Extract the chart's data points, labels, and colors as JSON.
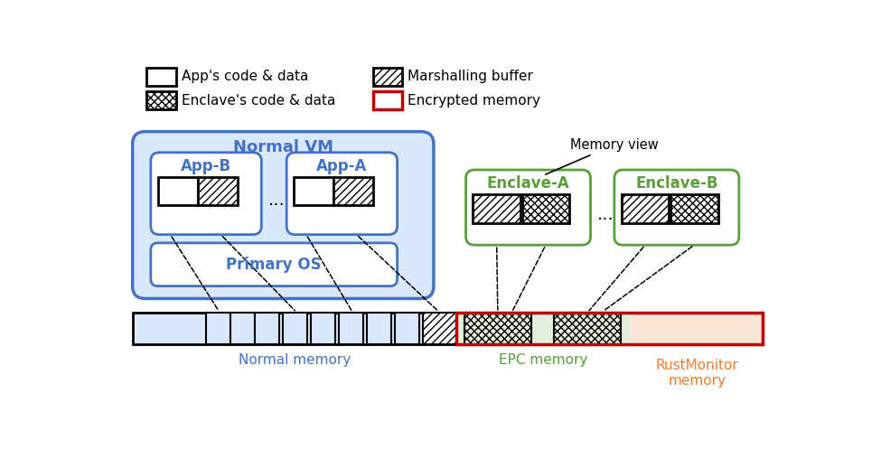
{
  "fig_width": 9.75,
  "fig_height": 5.08,
  "dpi": 100,
  "bg_color": "#ffffff",
  "blue_color": "#4472C4",
  "green_color": "#5A9E3A",
  "orange_color": "#ED7D31",
  "red_color": "#C00000",
  "light_blue": "#D9E8FB",
  "light_green": "#E2EFDA",
  "light_orange": "#FCE4D6",
  "normal_vm_label": "Normal VM",
  "app_b_label": "App-B",
  "app_a_label": "App-A",
  "primary_os_label": "Primary OS",
  "enclave_a_label": "Enclave-A",
  "enclave_b_label": "Enclave-B",
  "memory_view_label": "Memory view",
  "normal_memory_label": "Normal memory",
  "epc_memory_label": "EPC memory",
  "rust_monitor_label": "RustMonitor\nmemory",
  "legend": [
    {
      "label": "App's code & data",
      "fc": "white",
      "ec": "black",
      "hatch": null
    },
    {
      "label": "Marshalling buffer",
      "fc": "white",
      "ec": "black",
      "hatch": "////"
    },
    {
      "label": "Enclave's code & data",
      "fc": "white",
      "ec": "black",
      "hatch": "xxxx"
    },
    {
      "label": "Encrypted memory",
      "fc": "white",
      "ec": "#C00000",
      "hatch": null
    }
  ]
}
